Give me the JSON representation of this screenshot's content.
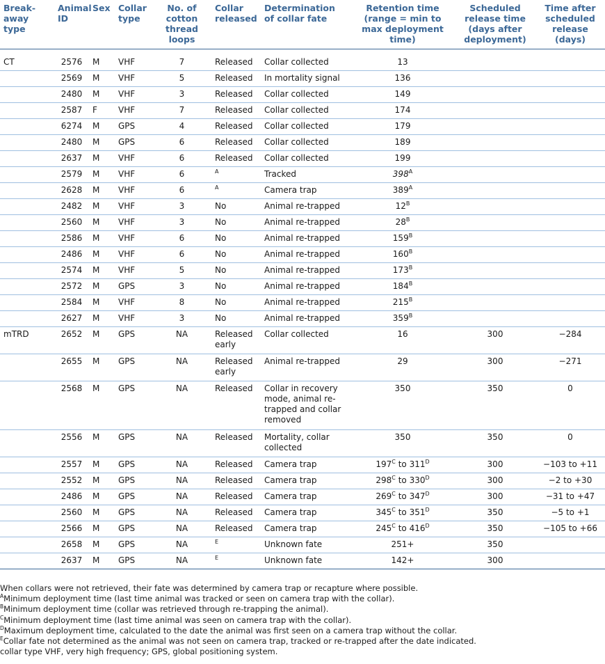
{
  "headers": {
    "breakaway": "Break-away type",
    "animal_id": "Animal ID",
    "sex": "Sex",
    "collar_type": "Collar type",
    "loops": "No. of cotton thread loops",
    "released": "Collar released",
    "fate": "Determination of collar fate",
    "retention": "Retention time (range = min to max deployment time)",
    "scheduled": "Scheduled release time (days after deployment)",
    "after": "Time after scheduled release (days)"
  },
  "rows": [
    {
      "type": "CT",
      "id": "2576",
      "sex": "M",
      "collar": "VHF",
      "loops": "7",
      "released": "Released",
      "rel_sup": "",
      "fate": "Collar collected",
      "ret": "13",
      "ret_sup": "",
      "ret2": "",
      "ret2_sup": "",
      "sched": "",
      "after": "",
      "cls": "first"
    },
    {
      "type": "",
      "id": "2569",
      "sex": "M",
      "collar": "VHF",
      "loops": "5",
      "released": "Released",
      "rel_sup": "",
      "fate": "In mortality signal",
      "ret": "136",
      "ret_sup": "",
      "ret2": "",
      "ret2_sup": "",
      "sched": "",
      "after": "",
      "cls": "h1"
    },
    {
      "type": "",
      "id": "2480",
      "sex": "M",
      "collar": "VHF",
      "loops": "3",
      "released": "Released",
      "rel_sup": "",
      "fate": "Collar collected",
      "ret": "149",
      "ret_sup": "",
      "ret2": "",
      "ret2_sup": "",
      "sched": "",
      "after": "",
      "cls": "h1"
    },
    {
      "type": "",
      "id": "2587",
      "sex": "F",
      "collar": "VHF",
      "loops": "7",
      "released": "Released",
      "rel_sup": "",
      "fate": "Collar collected",
      "ret": "174",
      "ret_sup": "",
      "ret2": "",
      "ret2_sup": "",
      "sched": "",
      "after": "",
      "cls": "h1"
    },
    {
      "type": "",
      "id": "6274",
      "sex": "M",
      "collar": "GPS",
      "loops": "4",
      "released": "Released",
      "rel_sup": "",
      "fate": "Collar collected",
      "ret": "179",
      "ret_sup": "",
      "ret2": "",
      "ret2_sup": "",
      "sched": "",
      "after": "",
      "cls": "h1"
    },
    {
      "type": "",
      "id": "2480",
      "sex": "M",
      "collar": "GPS",
      "loops": "6",
      "released": "Released",
      "rel_sup": "",
      "fate": "Collar collected",
      "ret": "189",
      "ret_sup": "",
      "ret2": "",
      "ret2_sup": "",
      "sched": "",
      "after": "",
      "cls": "h1"
    },
    {
      "type": "",
      "id": "2637",
      "sex": "M",
      "collar": "VHF",
      "loops": "6",
      "released": "Released",
      "rel_sup": "",
      "fate": "Collar collected",
      "ret": "199",
      "ret_sup": "",
      "ret2": "",
      "ret2_sup": "",
      "sched": "",
      "after": "",
      "cls": "h1"
    },
    {
      "type": "",
      "id": "2579",
      "sex": "M",
      "collar": "VHF",
      "loops": "6",
      "released": "",
      "rel_sup": "A",
      "fate": "Tracked",
      "ret": "398",
      "ret_sup": "A",
      "ret2": "",
      "ret2_sup": "",
      "sched": "",
      "after": "",
      "cls": "h1"
    },
    {
      "type": "",
      "id": "2628",
      "sex": "M",
      "collar": "VHF",
      "loops": "6",
      "released": "",
      "rel_sup": "A",
      "fate": "Camera trap",
      "ret": "389",
      "ret_sup": "A",
      "ret2": "",
      "ret2_sup": "",
      "sched": "",
      "after": "",
      "cls": "h1"
    },
    {
      "type": "",
      "id": "2482",
      "sex": "M",
      "collar": "VHF",
      "loops": "3",
      "released": "No",
      "rel_sup": "",
      "fate": "Animal re-trapped",
      "ret": "12",
      "ret_sup": "B",
      "ret2": "",
      "ret2_sup": "",
      "sched": "",
      "after": "",
      "cls": "h1"
    },
    {
      "type": "",
      "id": "2560",
      "sex": "M",
      "collar": "VHF",
      "loops": "3",
      "released": "No",
      "rel_sup": "",
      "fate": "Animal re-trapped",
      "ret": "28",
      "ret_sup": "B",
      "ret2": "",
      "ret2_sup": "",
      "sched": "",
      "after": "",
      "cls": "h1"
    },
    {
      "type": "",
      "id": "2586",
      "sex": "M",
      "collar": "VHF",
      "loops": "6",
      "released": "No",
      "rel_sup": "",
      "fate": "Animal re-trapped",
      "ret": "159",
      "ret_sup": "B",
      "ret2": "",
      "ret2_sup": "",
      "sched": "",
      "after": "",
      "cls": "h1"
    },
    {
      "type": "",
      "id": "2486",
      "sex": "M",
      "collar": "VHF",
      "loops": "6",
      "released": "No",
      "rel_sup": "",
      "fate": "Animal re-trapped",
      "ret": "160",
      "ret_sup": "B",
      "ret2": "",
      "ret2_sup": "",
      "sched": "",
      "after": "",
      "cls": "h1"
    },
    {
      "type": "",
      "id": "2574",
      "sex": "M",
      "collar": "VHF",
      "loops": "5",
      "released": "No",
      "rel_sup": "",
      "fate": "Animal re-trapped",
      "ret": "173",
      "ret_sup": "B",
      "ret2": "",
      "ret2_sup": "",
      "sched": "",
      "after": "",
      "cls": "h1"
    },
    {
      "type": "",
      "id": "2572",
      "sex": "M",
      "collar": "GPS",
      "loops": "3",
      "released": "No",
      "rel_sup": "",
      "fate": "Animal re-trapped",
      "ret": "184",
      "ret_sup": "B",
      "ret2": "",
      "ret2_sup": "",
      "sched": "",
      "after": "",
      "cls": "h1"
    },
    {
      "type": "",
      "id": "2584",
      "sex": "M",
      "collar": "VHF",
      "loops": "8",
      "released": "No",
      "rel_sup": "",
      "fate": "Animal re-trapped",
      "ret": "215",
      "ret_sup": "B",
      "ret2": "",
      "ret2_sup": "",
      "sched": "",
      "after": "",
      "cls": "h1"
    },
    {
      "type": "",
      "id": "2627",
      "sex": "M",
      "collar": "VHF",
      "loops": "3",
      "released": "No",
      "rel_sup": "",
      "fate": "Animal re-trapped",
      "ret": "359",
      "ret_sup": "B",
      "ret2": "",
      "ret2_sup": "",
      "sched": "",
      "after": "",
      "cls": "h1"
    },
    {
      "type": "mTRD",
      "id": "2652",
      "sex": "M",
      "collar": "GPS",
      "loops": "NA",
      "released": "Released early",
      "rel_sup": "",
      "fate": "Collar collected",
      "ret": "16",
      "ret_sup": "",
      "ret2": "",
      "ret2_sup": "",
      "sched": "300",
      "after": "−284",
      "cls": "h2"
    },
    {
      "type": "",
      "id": "2655",
      "sex": "M",
      "collar": "GPS",
      "loops": "NA",
      "released": "Released early",
      "rel_sup": "",
      "fate": "Animal re-trapped",
      "ret": "29",
      "ret_sup": "",
      "ret2": "",
      "ret2_sup": "",
      "sched": "300",
      "after": "−271",
      "cls": "h2"
    },
    {
      "type": "",
      "id": "2568",
      "sex": "M",
      "collar": "GPS",
      "loops": "NA",
      "released": "Released",
      "rel_sup": "",
      "fate": "Collar in recovery mode, animal re-trapped and collar removed",
      "ret": "350",
      "ret_sup": "",
      "ret2": "",
      "ret2_sup": "",
      "sched": "350",
      "after": "0",
      "cls": "h4"
    },
    {
      "type": "",
      "id": "2556",
      "sex": "M",
      "collar": "GPS",
      "loops": "NA",
      "released": "Released",
      "rel_sup": "",
      "fate": "Mortality, collar collected",
      "ret": "350",
      "ret_sup": "",
      "ret2": "",
      "ret2_sup": "",
      "sched": "350",
      "after": "0",
      "cls": "h2"
    },
    {
      "type": "",
      "id": "2557",
      "sex": "M",
      "collar": "GPS",
      "loops": "NA",
      "released": "Released",
      "rel_sup": "",
      "fate": "Camera trap",
      "ret": "197",
      "ret_sup": "C",
      "ret2": "311",
      "ret2_sup": "D",
      "sched": "300",
      "after": "−103 to +11",
      "cls": "h1"
    },
    {
      "type": "",
      "id": "2552",
      "sex": "M",
      "collar": "GPS",
      "loops": "NA",
      "released": "Released",
      "rel_sup": "",
      "fate": "Camera trap",
      "ret": "298",
      "ret_sup": "C",
      "ret2": "330",
      "ret2_sup": "D",
      "sched": "300",
      "after": "−2 to +30",
      "cls": "h1"
    },
    {
      "type": "",
      "id": "2486",
      "sex": "M",
      "collar": "GPS",
      "loops": "NA",
      "released": "Released",
      "rel_sup": "",
      "fate": "Camera trap",
      "ret": "269",
      "ret_sup": "C",
      "ret2": "347",
      "ret2_sup": "D",
      "sched": "300",
      "after": "−31 to +47",
      "cls": "h1"
    },
    {
      "type": "",
      "id": "2560",
      "sex": "M",
      "collar": "GPS",
      "loops": "NA",
      "released": "Released",
      "rel_sup": "",
      "fate": "Camera trap",
      "ret": "345",
      "ret_sup": "C",
      "ret2": "351",
      "ret2_sup": "D",
      "sched": "350",
      "after": "−5 to +1",
      "cls": "h1"
    },
    {
      "type": "",
      "id": "2566",
      "sex": "M",
      "collar": "GPS",
      "loops": "NA",
      "released": "Released",
      "rel_sup": "",
      "fate": "Camera trap",
      "ret": "245",
      "ret_sup": "C",
      "ret2": "416",
      "ret2_sup": "D",
      "sched": "350",
      "after": "−105 to +66",
      "cls": "h1"
    },
    {
      "type": "",
      "id": "2658",
      "sex": "M",
      "collar": "GPS",
      "loops": "NA",
      "released": "",
      "rel_sup": "E",
      "fate": "Unknown fate",
      "ret": "251+",
      "ret_sup": "",
      "ret2": "",
      "ret2_sup": "",
      "sched": "350",
      "after": "",
      "cls": "h1"
    },
    {
      "type": "",
      "id": "2637",
      "sex": "M",
      "collar": "GPS",
      "loops": "NA",
      "released": "",
      "rel_sup": "E",
      "fate": "Unknown fate",
      "ret": "142+",
      "ret_sup": "",
      "ret2": "",
      "ret2_sup": "",
      "sched": "300",
      "after": "",
      "cls": "h1 last"
    }
  ],
  "range_word": "to",
  "notes": [
    {
      "sup": "",
      "text": "When collars were not retrieved, their fate was determined by camera trap or recapture where possible."
    },
    {
      "sup": "A",
      "text": "Minimum deployment time (last time animal was tracked or seen on camera trap with the collar)."
    },
    {
      "sup": "B",
      "text": "Minimum deployment time (collar was retrieved through re-trapping the animal)."
    },
    {
      "sup": "C",
      "text": "Minimum deployment time (last time animal was seen on camera trap with the collar)."
    },
    {
      "sup": "D",
      "text": "Maximum deployment time, calculated to the date the animal was first seen on a camera trap without the collar."
    },
    {
      "sup": "E",
      "text": "Collar fate not determined as the animal was not seen on camera trap, tracked or re-trapped after the date indicated."
    },
    {
      "sup": "",
      "text": "collar type VHF, very high frequency; GPS, global positioning system."
    }
  ]
}
